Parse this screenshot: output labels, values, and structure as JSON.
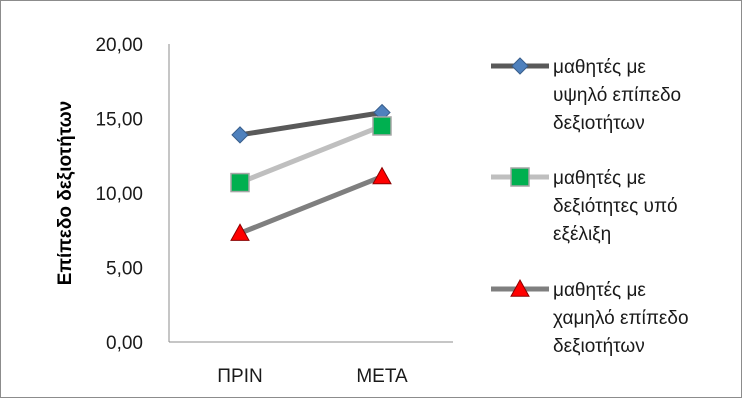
{
  "chart_data": {
    "type": "line",
    "categories": [
      "ΠΡΙΝ",
      "ΜΕΤΑ"
    ],
    "ylabel": "Επίπεδο δεξιοτήτων",
    "ylim": [
      0,
      20
    ],
    "ytick_labels": [
      "0,00",
      "5,00",
      "10,00",
      "15,00",
      "20,00"
    ],
    "ytick_values": [
      0,
      5,
      10,
      15,
      20
    ],
    "grid": false,
    "legend_position": "right",
    "series": [
      {
        "name_lines": [
          "μαθητές με",
          "υψηλό επίπεδο",
          "δεξιοτήτων"
        ],
        "values": [
          13.9,
          15.4
        ],
        "line_color": "#595959",
        "marker": "diamond",
        "marker_color": "#4f81bd"
      },
      {
        "name_lines": [
          "μαθητές με",
          "δεξιότητες υπό",
          "εξέλιξη"
        ],
        "values": [
          10.7,
          14.5
        ],
        "line_color": "#bfbfbf",
        "marker": "square",
        "marker_color": "#00b050"
      },
      {
        "name_lines": [
          " μαθητές με",
          "χαμηλό επίπεδο",
          "δεξιοτήτων"
        ],
        "values": [
          7.3,
          11.1
        ],
        "line_color": "#7f7f7f",
        "marker": "triangle",
        "marker_color": "#ff0000"
      }
    ]
  }
}
